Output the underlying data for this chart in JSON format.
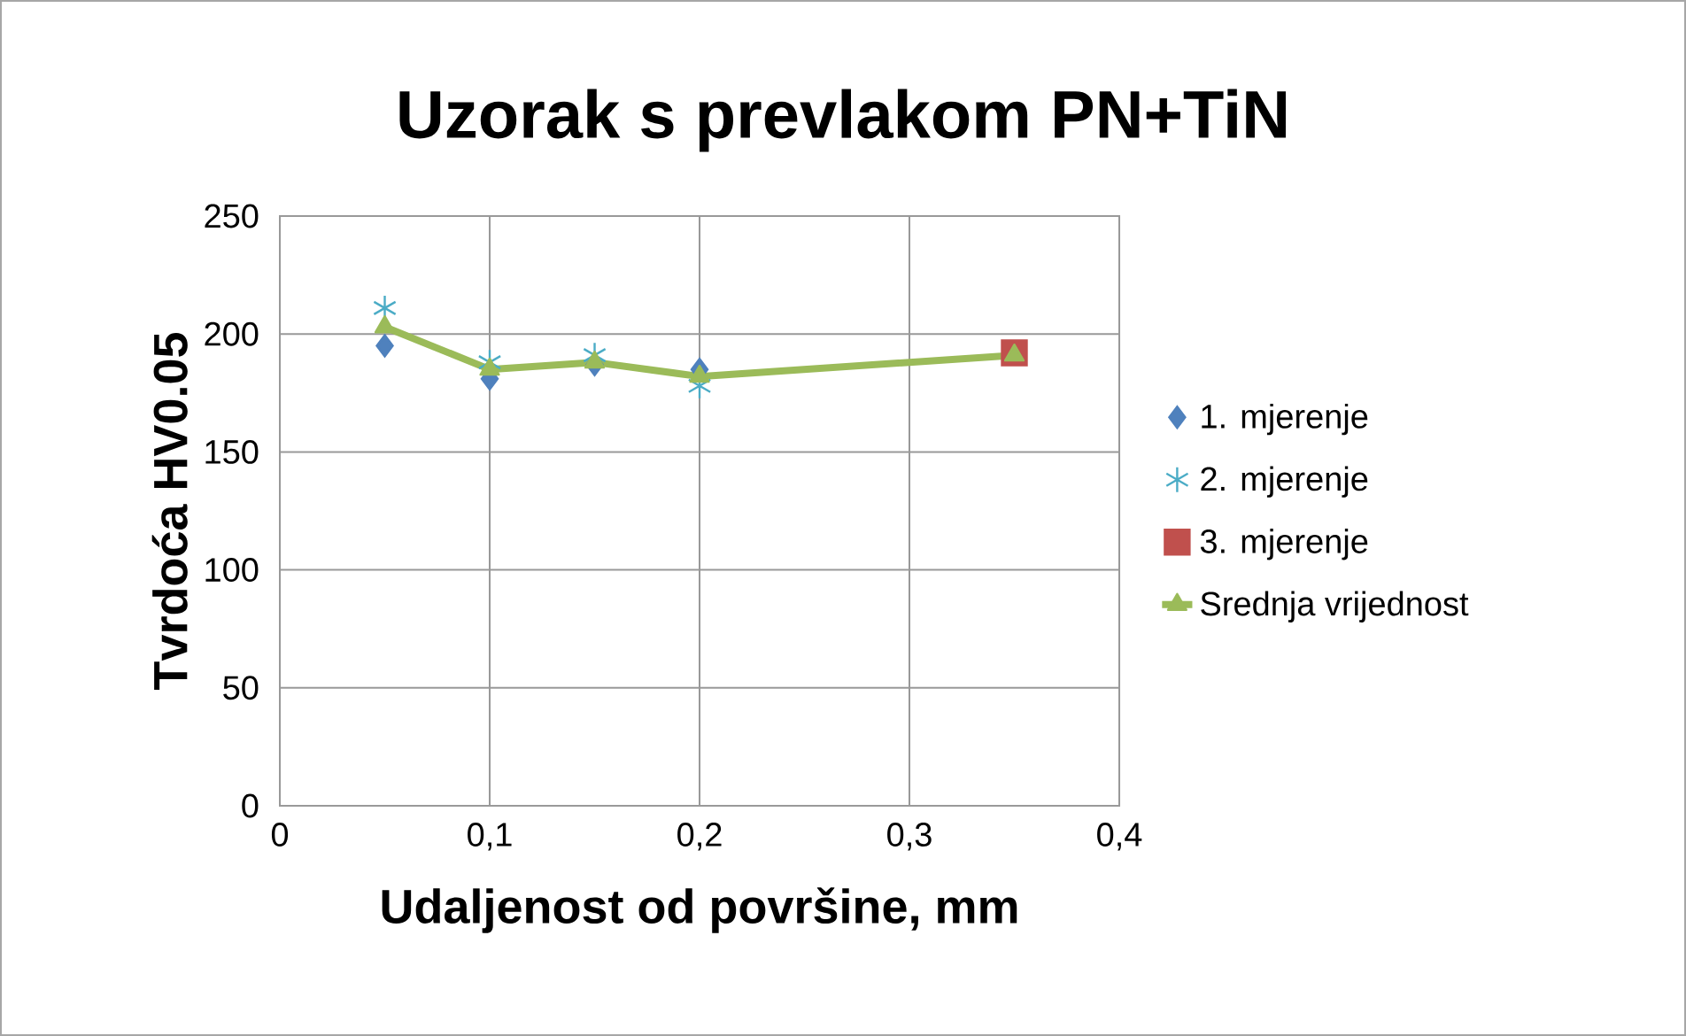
{
  "chart_data": {
    "type": "scatter",
    "title": "Uzorak s prevlakom PN+TiN",
    "xlabel": "Udaljenost od površine, mm",
    "ylabel": "Tvrdoća HV0.05",
    "xlim": [
      0,
      0.4
    ],
    "ylim": [
      0,
      250
    ],
    "xticks": [
      0,
      {
        "value": 0.1,
        "label": "0,1"
      },
      {
        "value": 0.2,
        "label": "0,2"
      },
      {
        "value": 0.3,
        "label": "0,3"
      },
      {
        "value": 0.4,
        "label": "0,4"
      }
    ],
    "yticks": [
      0,
      50,
      100,
      150,
      200,
      250
    ],
    "grid": true,
    "legend": "right",
    "series": [
      {
        "name": "1. mjerenje",
        "marker": "diamond",
        "color": "#4f81bd",
        "x": [
          0.05,
          0.1,
          0.15,
          0.2
        ],
        "values": [
          195,
          181,
          187,
          185
        ]
      },
      {
        "name": "2. mjerenje",
        "marker": "cross",
        "color": "#4bacc6",
        "x": [
          0.05,
          0.1,
          0.15,
          0.2
        ],
        "values": [
          211,
          188,
          191,
          178
        ]
      },
      {
        "name": "3. mjerenje",
        "marker": "square",
        "color": "#c0504d",
        "x": [
          0.35
        ],
        "values": [
          192
        ]
      },
      {
        "name": "Srednja vrijednost",
        "type": "line",
        "marker": "triangle",
        "color": "#9bbb59",
        "x": [
          0.05,
          0.1,
          0.15,
          0.2,
          0.35
        ],
        "values": [
          203,
          185,
          188,
          182,
          191
        ]
      }
    ]
  }
}
